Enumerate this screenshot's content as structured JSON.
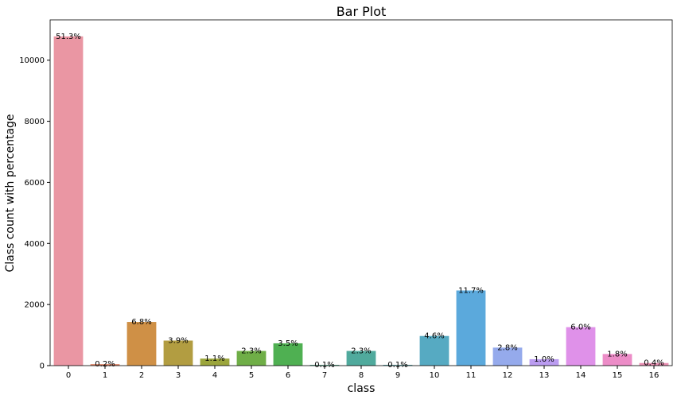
{
  "chart_data": {
    "type": "bar",
    "title": "Bar Plot",
    "xlabel": "class",
    "ylabel": "Class count with percentage",
    "categories": [
      "0",
      "1",
      "2",
      "3",
      "4",
      "5",
      "6",
      "7",
      "8",
      "9",
      "10",
      "11",
      "12",
      "13",
      "14",
      "15",
      "16"
    ],
    "values": [
      10780,
      50,
      1430,
      820,
      230,
      480,
      730,
      25,
      480,
      25,
      970,
      2460,
      590,
      210,
      1260,
      380,
      85
    ],
    "bar_labels": [
      "51.3%",
      "0.2%",
      "6.8%",
      "3.9%",
      "1.1%",
      "2.3%",
      "3.5%",
      "0.1%",
      "2.3%",
      "0.1%",
      "4.6%",
      "11.7%",
      "2.8%",
      "1.0%",
      "6.0%",
      "1.8%",
      "0.4%"
    ],
    "colors": [
      "#ea96a3",
      "#df8a6f",
      "#cf9046",
      "#b29d41",
      "#9ba53b",
      "#6fae47",
      "#4fb052",
      "#4fad8b",
      "#50aa9d",
      "#53a8ad",
      "#56aac2",
      "#5ba9dc",
      "#95aaec",
      "#bb9cf1",
      "#df91e9",
      "#ec8cc7",
      "#ea8fb3"
    ],
    "yticks": [
      0,
      2000,
      4000,
      6000,
      8000,
      10000
    ],
    "ylim": [
      0,
      11320
    ],
    "grid": false,
    "legend": "none"
  }
}
